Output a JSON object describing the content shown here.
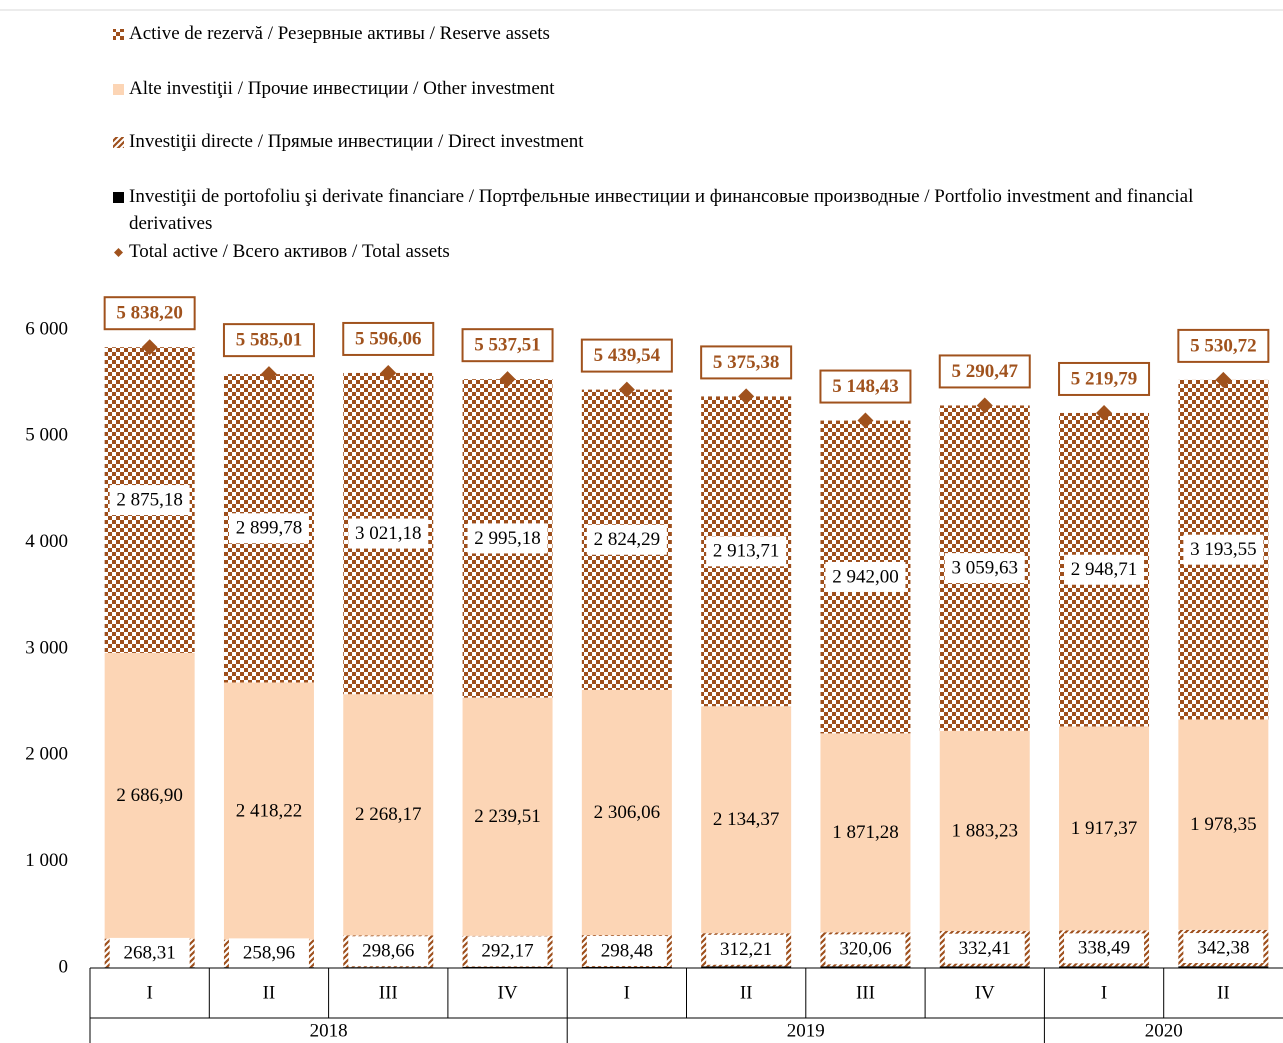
{
  "chart_data": {
    "type": "stacked-bar",
    "groups": [
      {
        "label": "2018",
        "categories": [
          "I",
          "II",
          "III",
          "IV"
        ]
      },
      {
        "label": "2019",
        "categories": [
          "I",
          "II",
          "III",
          "IV"
        ]
      },
      {
        "label": "2020",
        "categories": [
          "I",
          "II"
        ]
      }
    ],
    "series": [
      {
        "name": "Investiţii de portofoliu şi derivate financiare / Портфельные инвестиции и финансовые производные / Portfolio investment and financial derivatives",
        "color": "#000000",
        "pattern": "solid",
        "values": [
          7.81,
          8.05,
          8.05,
          10.65,
          10.71,
          15.09,
          15.09,
          15.2,
          15.22,
          16.44
        ]
      },
      {
        "name": "Investiţii directe /  Прямые инвестиции / Direct investment",
        "color": "#9e4f1c",
        "pattern": "hatch",
        "values": [
          268.31,
          258.96,
          298.66,
          292.17,
          298.48,
          312.21,
          320.06,
          332.41,
          338.49,
          342.38
        ],
        "value_labels": [
          "268,31",
          "258,96",
          "298,66",
          "292,17",
          "298,48",
          "312,21",
          "320,06",
          "332,41",
          "338,49",
          "342,38"
        ]
      },
      {
        "name": "Alte investiţii / Прочие инвестиции / Other investment",
        "color": "#fcd5b5",
        "pattern": "solid",
        "values": [
          2686.9,
          2418.22,
          2268.17,
          2239.51,
          2306.06,
          2134.37,
          1871.28,
          1883.23,
          1917.37,
          1978.35
        ],
        "value_labels": [
          "2 686,90",
          "2 418,22",
          "2 268,17",
          "2 239,51",
          "2 306,06",
          "2 134,37",
          "1 871,28",
          "1 883,23",
          "1 917,37",
          "1 978,35"
        ]
      },
      {
        "name": "Active de rezervă / Резервные активы / Reserve assets",
        "color": "#9e4f1c",
        "pattern": "checker",
        "values": [
          2875.18,
          2899.78,
          3021.18,
          2995.18,
          2824.29,
          2913.71,
          2942.0,
          3059.63,
          2948.71,
          3193.55
        ],
        "value_labels": [
          "2 875,18",
          "2 899,78",
          "3 021,18",
          "2 995,18",
          "2 824,29",
          "2 913,71",
          "2 942,00",
          "3 059,63",
          "2 948,71",
          "3 193,55"
        ]
      }
    ],
    "total": {
      "name": "Total active / Всего активов / Total assets",
      "color": "#a0521d",
      "marker": "diamond",
      "values": [
        5838.2,
        5585.01,
        5596.06,
        5537.51,
        5439.54,
        5375.38,
        5148.43,
        5290.47,
        5219.79,
        5530.72
      ],
      "value_labels": [
        "5 838,20",
        "5 585,01",
        "5 596,06",
        "5 537,51",
        "5 439,54",
        "5 375,38",
        "5 148,43",
        "5 290,47",
        "5 219,79",
        "5 530,72"
      ]
    },
    "ylim": [
      0,
      6000
    ],
    "yticks": [
      0,
      {
        "value": 1000,
        "label": "1 000"
      },
      {
        "value": 2000,
        "label": "2 000"
      },
      {
        "value": 3000,
        "label": "3 000"
      },
      {
        "value": 4000,
        "label": "4 000"
      },
      {
        "value": 5000,
        "label": "5 000"
      },
      {
        "value": 6000,
        "label": "6 000"
      }
    ]
  }
}
